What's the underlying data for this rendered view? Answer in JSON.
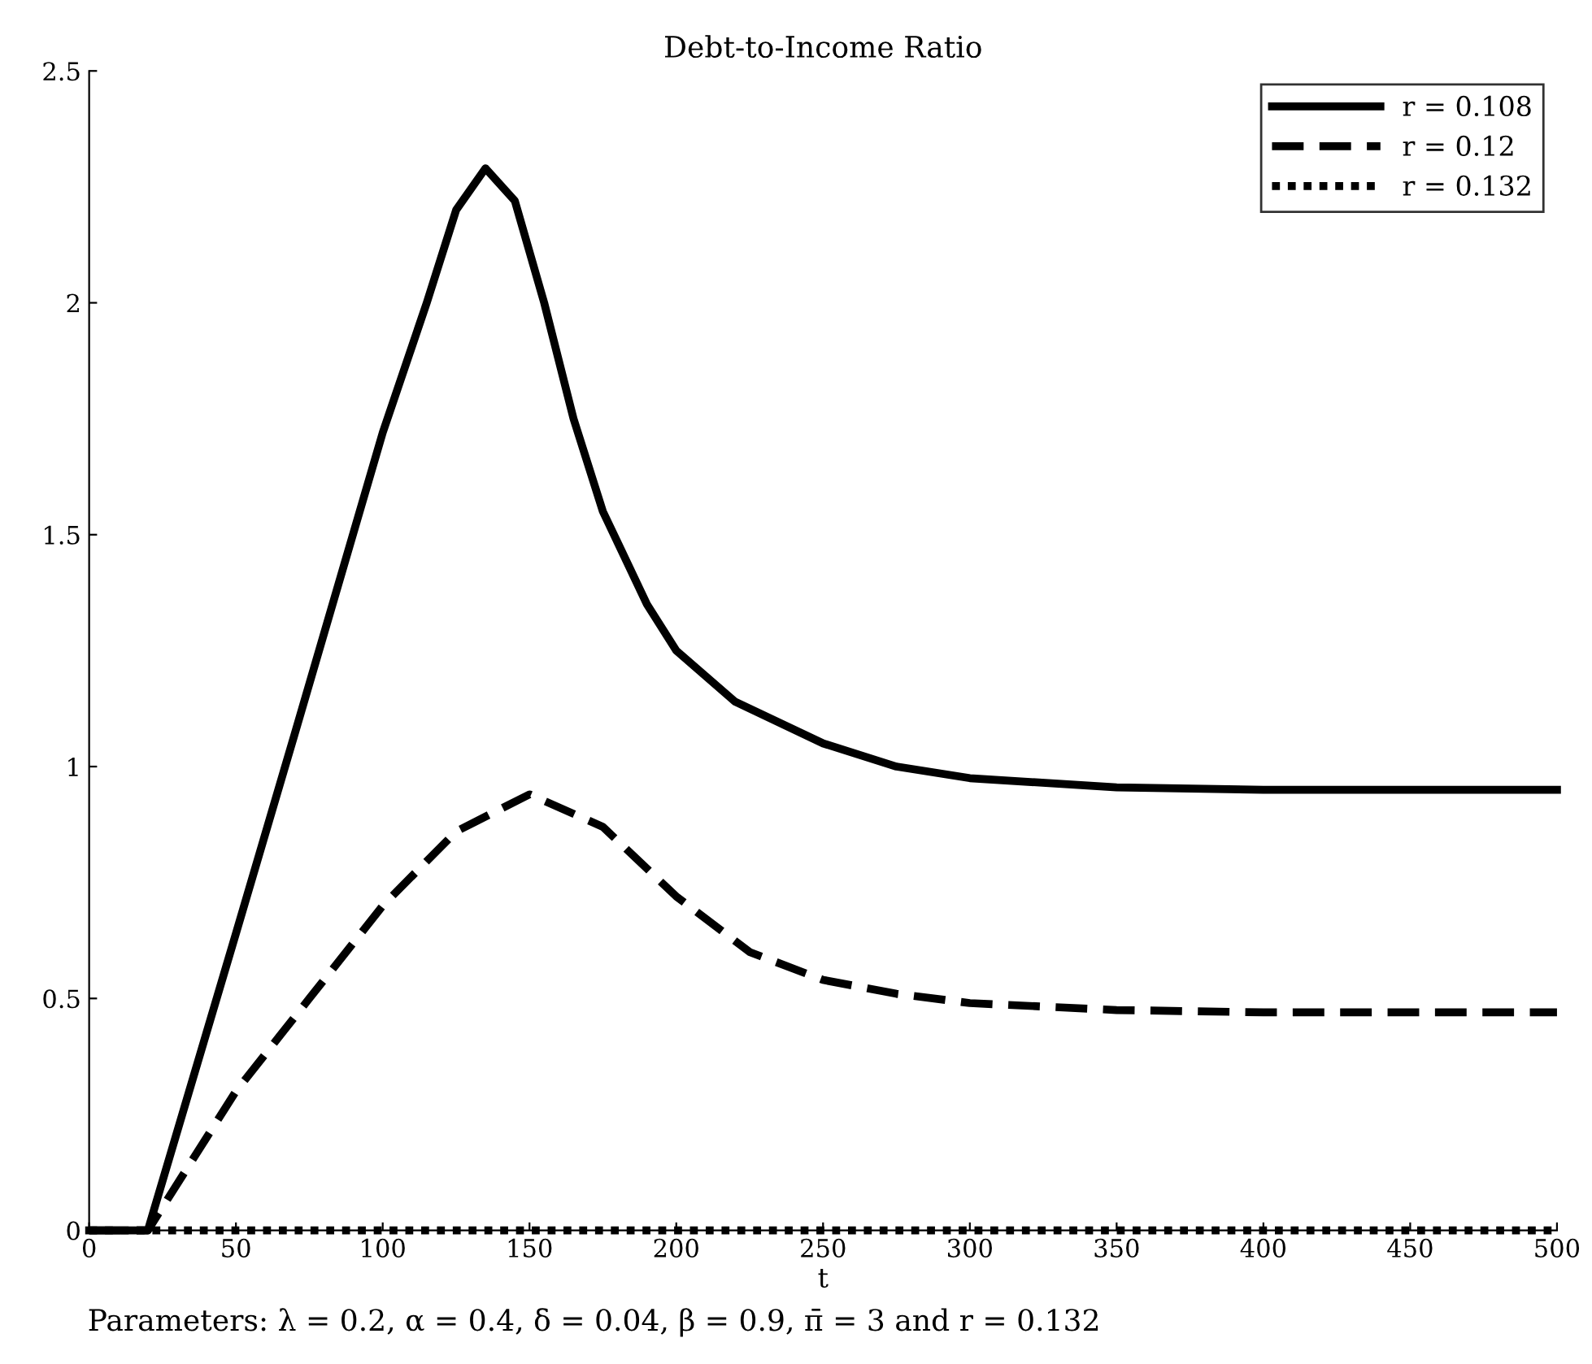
{
  "chart_data": {
    "type": "line",
    "title": "Debt-to-Income Ratio",
    "xlabel": "t",
    "annotations": [
      "Parameters: λ = 0.2, α = 0.4, δ = 0.04, β = 0.9, π̄ = 3 and r = 0.132"
    ],
    "series": [
      {
        "name": "r = 0.108",
        "color": "#000000",
        "line_style": "solid",
        "x": [
          0,
          20,
          50,
          70,
          100,
          115,
          125,
          135,
          145,
          155,
          165,
          175,
          190,
          200,
          220,
          250,
          275,
          300,
          350,
          400,
          500
        ],
        "values": [
          0,
          0,
          0.64,
          1.07,
          1.72,
          2.0,
          2.2,
          2.29,
          2.22,
          2.0,
          1.75,
          1.55,
          1.35,
          1.25,
          1.14,
          1.05,
          1.0,
          0.975,
          0.955,
          0.95,
          0.95
        ]
      },
      {
        "name": "r = 0.12",
        "color": "#000000",
        "line_style": "dashed",
        "x": [
          0,
          20,
          50,
          75,
          100,
          125,
          150,
          175,
          200,
          225,
          250,
          275,
          300,
          350,
          400,
          500
        ],
        "values": [
          0,
          0,
          0.3,
          0.5,
          0.7,
          0.86,
          0.94,
          0.87,
          0.72,
          0.6,
          0.54,
          0.51,
          0.49,
          0.475,
          0.47,
          0.47
        ]
      },
      {
        "name": "r = 0.132",
        "color": "#000000",
        "line_style": "dotted",
        "x": [
          0,
          500
        ],
        "values": [
          0,
          0
        ]
      }
    ],
    "xlim": [
      0,
      500
    ],
    "ylim": [
      0,
      2.5
    ],
    "xticks": [
      0,
      50,
      100,
      150,
      200,
      250,
      300,
      350,
      400,
      450,
      500
    ],
    "yticks": [
      0,
      0.5,
      1,
      1.5,
      2,
      2.5
    ],
    "grid": false,
    "legend": "top right",
    "marker": "none"
  }
}
